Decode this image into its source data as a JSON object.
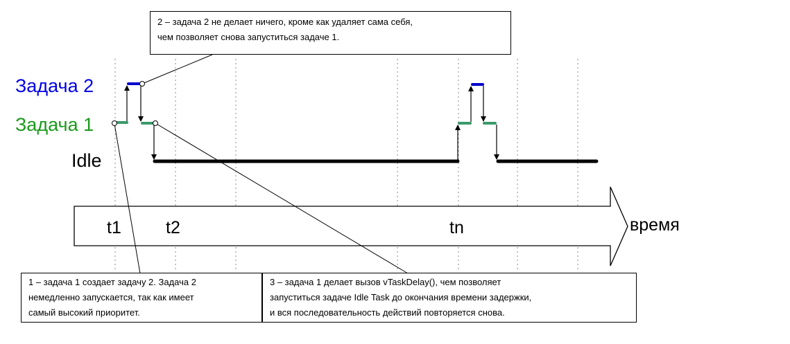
{
  "lanes": {
    "task2": {
      "label": "Задача 2",
      "color": "#0000e6"
    },
    "task1": {
      "label": "Задача 1",
      "color": "#1a9a1a"
    },
    "idle": {
      "label": "Idle",
      "color": "#000000"
    }
  },
  "time_axis": {
    "label": "время",
    "ticks": [
      "t1",
      "t2",
      "tn"
    ]
  },
  "notes": {
    "note1": {
      "lines": [
        "1 – задача 1 создает задачу 2. Задача 2",
        "немедленно запускается, так как имеет",
        "самый высокий приоритет."
      ]
    },
    "note2": {
      "lines": [
        "2 – задача 2 не делает ничего, кроме как удаляет сама себя,",
        "чем позволяет снова запуститься задаче 1."
      ]
    },
    "note3": {
      "lines": [
        "3 – задача 1 делает вызов vTaskDelay(), чем позволяет",
        "запуститься задаче Idle Task до окончания времени задержки,",
        "и вся последовательность действий повторяется снова."
      ]
    }
  },
  "colors": {
    "task1_segment": "#3a9a6a",
    "task2_segment": "#0000cc",
    "idle_segment": "#000000",
    "gridline": "#888888"
  }
}
